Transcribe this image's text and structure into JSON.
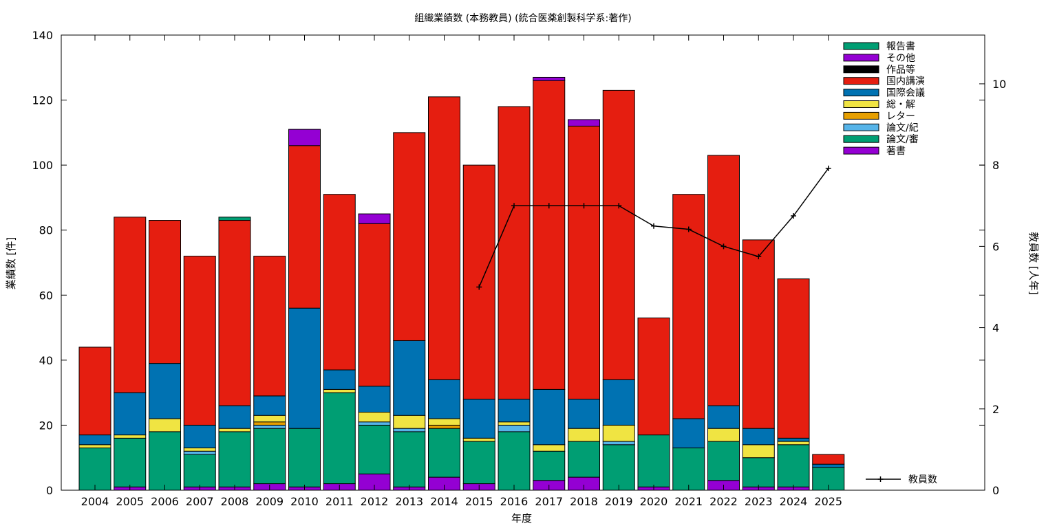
{
  "chart_data": {
    "type": "bar",
    "title": "組織業績数 (本務教員) (統合医薬創製科学系:著作)",
    "xlabel": "年度",
    "ylabel": "業績数 [件]",
    "y2label": "教員数 [人年]",
    "ylim": [
      0,
      140
    ],
    "y2lim": [
      0,
      11.2
    ],
    "yticks": [
      0,
      20,
      40,
      60,
      80,
      100,
      120,
      140
    ],
    "y2ticks": [
      0,
      2,
      4,
      6,
      8,
      10
    ],
    "grid": false,
    "legend_position": "top-right",
    "stacked": true,
    "categories": [
      "2004",
      "2005",
      "2006",
      "2007",
      "2008",
      "2009",
      "2010",
      "2011",
      "2012",
      "2013",
      "2014",
      "2015",
      "2016",
      "2017",
      "2018",
      "2019",
      "2020",
      "2021",
      "2022",
      "2023",
      "2024",
      "2025"
    ],
    "series": [
      {
        "name": "著書",
        "color": "#9400d3",
        "values": [
          0,
          1,
          0,
          1,
          1,
          2,
          1,
          2,
          5,
          1,
          4,
          2,
          0,
          3,
          4,
          0,
          1,
          0,
          3,
          1,
          1,
          0
        ]
      },
      {
        "name": "論文/審",
        "color": "#009e73",
        "values": [
          13,
          15,
          18,
          10,
          17,
          17,
          18,
          28,
          15,
          17,
          15,
          13,
          18,
          9,
          11,
          14,
          16,
          13,
          12,
          9,
          13,
          7
        ]
      },
      {
        "name": "論文/紀",
        "color": "#56b4e9",
        "values": [
          0,
          0,
          0,
          1,
          0,
          1,
          0,
          0,
          1,
          1,
          0,
          0,
          2,
          0,
          0,
          1,
          0,
          0,
          0,
          0,
          0,
          0
        ]
      },
      {
        "name": "レター",
        "color": "#e69f00",
        "values": [
          0,
          0,
          0,
          0,
          0,
          1,
          0,
          0,
          0,
          0,
          1,
          0,
          0,
          0,
          0,
          0,
          0,
          0,
          0,
          0,
          0,
          0
        ]
      },
      {
        "name": "総・解",
        "color": "#f0e442",
        "values": [
          1,
          1,
          4,
          1,
          1,
          2,
          0,
          1,
          3,
          4,
          2,
          1,
          1,
          2,
          4,
          5,
          0,
          0,
          4,
          4,
          1,
          0
        ]
      },
      {
        "name": "国際会議",
        "color": "#0072b2",
        "values": [
          3,
          13,
          17,
          7,
          7,
          6,
          37,
          6,
          8,
          23,
          12,
          12,
          7,
          17,
          9,
          14,
          0,
          9,
          7,
          5,
          1,
          1
        ]
      },
      {
        "name": "国内講演",
        "color": "#e51e10",
        "values": [
          27,
          54,
          44,
          52,
          57,
          43,
          50,
          54,
          50,
          64,
          87,
          72,
          90,
          95,
          84,
          89,
          36,
          69,
          77,
          58,
          49,
          3
        ]
      },
      {
        "name": "作品等",
        "color": "#000000",
        "values": [
          0,
          0,
          0,
          0,
          0,
          0,
          0,
          0,
          0,
          0,
          0,
          0,
          0,
          0,
          0,
          0,
          0,
          0,
          0,
          0,
          0,
          0
        ]
      },
      {
        "name": "その他",
        "color": "#9400d3",
        "values": [
          0,
          0,
          0,
          0,
          0,
          0,
          5,
          0,
          3,
          0,
          0,
          0,
          0,
          1,
          2,
          0,
          0,
          0,
          0,
          0,
          0,
          0
        ]
      },
      {
        "name": "報告書",
        "color": "#009e73",
        "values": [
          0,
          0,
          0,
          0,
          1,
          0,
          0,
          0,
          0,
          0,
          0,
          0,
          0,
          0,
          0,
          0,
          0,
          0,
          0,
          0,
          0,
          0
        ]
      }
    ],
    "line_series": {
      "name": "教員数",
      "color": "#000000",
      "axis": "y2",
      "x": [
        "2015",
        "2016",
        "2017",
        "2018",
        "2019",
        "2020",
        "2021",
        "2022",
        "2023",
        "2024",
        "2025"
      ],
      "values": [
        5.0,
        7.0,
        7.0,
        7.0,
        7.0,
        6.5,
        6.42,
        6.0,
        5.75,
        6.75,
        7.92
      ]
    }
  }
}
